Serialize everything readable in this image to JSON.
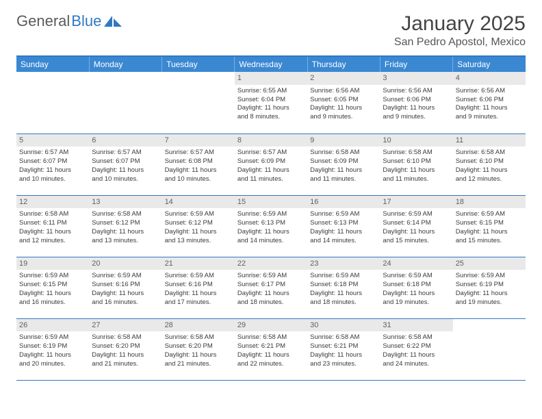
{
  "logo": {
    "part1": "General",
    "part2": "Blue"
  },
  "header": {
    "title": "January 2025",
    "location": "San Pedro Apostol, Mexico"
  },
  "styling": {
    "header_bg": "#3a88d2",
    "header_text": "#ffffff",
    "rule_color": "#2f78c4",
    "daynum_bg": "#e9e9e9",
    "daynum_color": "#606060",
    "body_text": "#3a3a3a",
    "title_fontsize": 30,
    "location_fontsize": 16,
    "cell_fontsize": 9.5
  },
  "weekdays": [
    "Sunday",
    "Monday",
    "Tuesday",
    "Wednesday",
    "Thursday",
    "Friday",
    "Saturday"
  ],
  "weeks": [
    [
      {
        "blank": true
      },
      {
        "blank": true
      },
      {
        "blank": true
      },
      {
        "day": "1",
        "sunrise": "Sunrise: 6:55 AM",
        "sunset": "Sunset: 6:04 PM",
        "daylight1": "Daylight: 11 hours",
        "daylight2": "and 8 minutes."
      },
      {
        "day": "2",
        "sunrise": "Sunrise: 6:56 AM",
        "sunset": "Sunset: 6:05 PM",
        "daylight1": "Daylight: 11 hours",
        "daylight2": "and 9 minutes."
      },
      {
        "day": "3",
        "sunrise": "Sunrise: 6:56 AM",
        "sunset": "Sunset: 6:06 PM",
        "daylight1": "Daylight: 11 hours",
        "daylight2": "and 9 minutes."
      },
      {
        "day": "4",
        "sunrise": "Sunrise: 6:56 AM",
        "sunset": "Sunset: 6:06 PM",
        "daylight1": "Daylight: 11 hours",
        "daylight2": "and 9 minutes."
      }
    ],
    [
      {
        "day": "5",
        "sunrise": "Sunrise: 6:57 AM",
        "sunset": "Sunset: 6:07 PM",
        "daylight1": "Daylight: 11 hours",
        "daylight2": "and 10 minutes."
      },
      {
        "day": "6",
        "sunrise": "Sunrise: 6:57 AM",
        "sunset": "Sunset: 6:07 PM",
        "daylight1": "Daylight: 11 hours",
        "daylight2": "and 10 minutes."
      },
      {
        "day": "7",
        "sunrise": "Sunrise: 6:57 AM",
        "sunset": "Sunset: 6:08 PM",
        "daylight1": "Daylight: 11 hours",
        "daylight2": "and 10 minutes."
      },
      {
        "day": "8",
        "sunrise": "Sunrise: 6:57 AM",
        "sunset": "Sunset: 6:09 PM",
        "daylight1": "Daylight: 11 hours",
        "daylight2": "and 11 minutes."
      },
      {
        "day": "9",
        "sunrise": "Sunrise: 6:58 AM",
        "sunset": "Sunset: 6:09 PM",
        "daylight1": "Daylight: 11 hours",
        "daylight2": "and 11 minutes."
      },
      {
        "day": "10",
        "sunrise": "Sunrise: 6:58 AM",
        "sunset": "Sunset: 6:10 PM",
        "daylight1": "Daylight: 11 hours",
        "daylight2": "and 11 minutes."
      },
      {
        "day": "11",
        "sunrise": "Sunrise: 6:58 AM",
        "sunset": "Sunset: 6:10 PM",
        "daylight1": "Daylight: 11 hours",
        "daylight2": "and 12 minutes."
      }
    ],
    [
      {
        "day": "12",
        "sunrise": "Sunrise: 6:58 AM",
        "sunset": "Sunset: 6:11 PM",
        "daylight1": "Daylight: 11 hours",
        "daylight2": "and 12 minutes."
      },
      {
        "day": "13",
        "sunrise": "Sunrise: 6:58 AM",
        "sunset": "Sunset: 6:12 PM",
        "daylight1": "Daylight: 11 hours",
        "daylight2": "and 13 minutes."
      },
      {
        "day": "14",
        "sunrise": "Sunrise: 6:59 AM",
        "sunset": "Sunset: 6:12 PM",
        "daylight1": "Daylight: 11 hours",
        "daylight2": "and 13 minutes."
      },
      {
        "day": "15",
        "sunrise": "Sunrise: 6:59 AM",
        "sunset": "Sunset: 6:13 PM",
        "daylight1": "Daylight: 11 hours",
        "daylight2": "and 14 minutes."
      },
      {
        "day": "16",
        "sunrise": "Sunrise: 6:59 AM",
        "sunset": "Sunset: 6:13 PM",
        "daylight1": "Daylight: 11 hours",
        "daylight2": "and 14 minutes."
      },
      {
        "day": "17",
        "sunrise": "Sunrise: 6:59 AM",
        "sunset": "Sunset: 6:14 PM",
        "daylight1": "Daylight: 11 hours",
        "daylight2": "and 15 minutes."
      },
      {
        "day": "18",
        "sunrise": "Sunrise: 6:59 AM",
        "sunset": "Sunset: 6:15 PM",
        "daylight1": "Daylight: 11 hours",
        "daylight2": "and 15 minutes."
      }
    ],
    [
      {
        "day": "19",
        "sunrise": "Sunrise: 6:59 AM",
        "sunset": "Sunset: 6:15 PM",
        "daylight1": "Daylight: 11 hours",
        "daylight2": "and 16 minutes."
      },
      {
        "day": "20",
        "sunrise": "Sunrise: 6:59 AM",
        "sunset": "Sunset: 6:16 PM",
        "daylight1": "Daylight: 11 hours",
        "daylight2": "and 16 minutes."
      },
      {
        "day": "21",
        "sunrise": "Sunrise: 6:59 AM",
        "sunset": "Sunset: 6:16 PM",
        "daylight1": "Daylight: 11 hours",
        "daylight2": "and 17 minutes."
      },
      {
        "day": "22",
        "sunrise": "Sunrise: 6:59 AM",
        "sunset": "Sunset: 6:17 PM",
        "daylight1": "Daylight: 11 hours",
        "daylight2": "and 18 minutes."
      },
      {
        "day": "23",
        "sunrise": "Sunrise: 6:59 AM",
        "sunset": "Sunset: 6:18 PM",
        "daylight1": "Daylight: 11 hours",
        "daylight2": "and 18 minutes."
      },
      {
        "day": "24",
        "sunrise": "Sunrise: 6:59 AM",
        "sunset": "Sunset: 6:18 PM",
        "daylight1": "Daylight: 11 hours",
        "daylight2": "and 19 minutes."
      },
      {
        "day": "25",
        "sunrise": "Sunrise: 6:59 AM",
        "sunset": "Sunset: 6:19 PM",
        "daylight1": "Daylight: 11 hours",
        "daylight2": "and 19 minutes."
      }
    ],
    [
      {
        "day": "26",
        "sunrise": "Sunrise: 6:59 AM",
        "sunset": "Sunset: 6:19 PM",
        "daylight1": "Daylight: 11 hours",
        "daylight2": "and 20 minutes."
      },
      {
        "day": "27",
        "sunrise": "Sunrise: 6:58 AM",
        "sunset": "Sunset: 6:20 PM",
        "daylight1": "Daylight: 11 hours",
        "daylight2": "and 21 minutes."
      },
      {
        "day": "28",
        "sunrise": "Sunrise: 6:58 AM",
        "sunset": "Sunset: 6:20 PM",
        "daylight1": "Daylight: 11 hours",
        "daylight2": "and 21 minutes."
      },
      {
        "day": "29",
        "sunrise": "Sunrise: 6:58 AM",
        "sunset": "Sunset: 6:21 PM",
        "daylight1": "Daylight: 11 hours",
        "daylight2": "and 22 minutes."
      },
      {
        "day": "30",
        "sunrise": "Sunrise: 6:58 AM",
        "sunset": "Sunset: 6:21 PM",
        "daylight1": "Daylight: 11 hours",
        "daylight2": "and 23 minutes."
      },
      {
        "day": "31",
        "sunrise": "Sunrise: 6:58 AM",
        "sunset": "Sunset: 6:22 PM",
        "daylight1": "Daylight: 11 hours",
        "daylight2": "and 24 minutes."
      },
      {
        "blank": true
      }
    ]
  ]
}
